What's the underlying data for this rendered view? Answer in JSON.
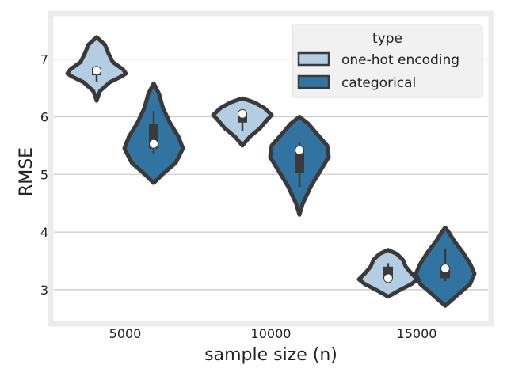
{
  "chart_data": {
    "type": "violin",
    "xlabel": "sample size (n)",
    "ylabel": "RMSE",
    "categories": [
      "5000",
      "10000",
      "15000"
    ],
    "ylim": [
      2.45,
      7.75
    ],
    "yticks": [
      3,
      4,
      5,
      6,
      7
    ],
    "grid": "horizontal",
    "legend": {
      "title": "type",
      "position": "top-right",
      "entries": [
        "one-hot encoding",
        "categorical"
      ]
    },
    "colors": {
      "one-hot encoding": "#b3cde3",
      "categorical": "#3274a1",
      "outline": "#3a3a3a",
      "frame": "#ececec",
      "grid": "#cccccc"
    },
    "series": [
      {
        "name": "one-hot encoding",
        "violins": [
          {
            "category": "5000",
            "median": 6.8,
            "q1": 6.72,
            "q3": 6.85,
            "whisker_low": 6.6,
            "whisker_high": 6.88,
            "min": 6.28,
            "max": 7.38,
            "density": [
              [
                6.28,
                0.0
              ],
              [
                6.45,
                0.12
              ],
              [
                6.6,
                0.45
              ],
              [
                6.7,
                0.85
              ],
              [
                6.75,
                1.0
              ],
              [
                6.82,
                0.9
              ],
              [
                6.95,
                0.55
              ],
              [
                7.1,
                0.4
              ],
              [
                7.25,
                0.28
              ],
              [
                7.38,
                0.0
              ]
            ]
          },
          {
            "category": "10000",
            "median": 6.05,
            "q1": 5.9,
            "q3": 6.05,
            "whisker_low": 5.75,
            "whisker_high": 6.1,
            "min": 5.5,
            "max": 6.32,
            "density": [
              [
                5.5,
                0.0
              ],
              [
                5.65,
                0.25
              ],
              [
                5.8,
                0.6
              ],
              [
                5.95,
                0.85
              ],
              [
                6.03,
                1.0
              ],
              [
                6.15,
                0.75
              ],
              [
                6.25,
                0.4
              ],
              [
                6.32,
                0.0
              ]
            ]
          },
          {
            "category": "15000",
            "median": 3.2,
            "q1": 3.2,
            "q3": 3.4,
            "whisker_low": 3.15,
            "whisker_high": 3.46,
            "min": 2.88,
            "max": 3.69,
            "density": [
              [
                2.88,
                0.0
              ],
              [
                2.98,
                0.35
              ],
              [
                3.1,
                0.8
              ],
              [
                3.18,
                1.0
              ],
              [
                3.28,
                0.8
              ],
              [
                3.4,
                0.6
              ],
              [
                3.52,
                0.5
              ],
              [
                3.62,
                0.3
              ],
              [
                3.69,
                0.0
              ]
            ]
          }
        ]
      },
      {
        "name": "categorical",
        "violins": [
          {
            "category": "5000",
            "median": 5.53,
            "q1": 5.45,
            "q3": 5.88,
            "whisker_low": 5.35,
            "whisker_high": 6.1,
            "min": 4.85,
            "max": 6.58,
            "density": [
              [
                4.85,
                0.0
              ],
              [
                5.0,
                0.3
              ],
              [
                5.2,
                0.75
              ],
              [
                5.45,
                1.0
              ],
              [
                5.65,
                0.85
              ],
              [
                5.9,
                0.55
              ],
              [
                6.15,
                0.32
              ],
              [
                6.4,
                0.18
              ],
              [
                6.58,
                0.0
              ]
            ]
          },
          {
            "category": "10000",
            "median": 5.42,
            "q1": 5.03,
            "q3": 5.47,
            "whisker_low": 4.78,
            "whisker_high": 5.55,
            "min": 4.3,
            "max": 6.0,
            "density": [
              [
                4.3,
                0.0
              ],
              [
                4.5,
                0.12
              ],
              [
                4.8,
                0.4
              ],
              [
                5.05,
                0.7
              ],
              [
                5.3,
                1.0
              ],
              [
                5.5,
                0.95
              ],
              [
                5.7,
                0.6
              ],
              [
                5.88,
                0.3
              ],
              [
                6.0,
                0.0
              ]
            ]
          },
          {
            "category": "15000",
            "median": 3.37,
            "q1": 3.2,
            "q3": 3.4,
            "whisker_low": 3.15,
            "whisker_high": 3.72,
            "min": 2.72,
            "max": 4.08,
            "density": [
              [
                2.72,
                0.0
              ],
              [
                2.9,
                0.4
              ],
              [
                3.1,
                0.85
              ],
              [
                3.28,
                1.0
              ],
              [
                3.45,
                0.85
              ],
              [
                3.65,
                0.6
              ],
              [
                3.85,
                0.3
              ],
              [
                4.0,
                0.12
              ],
              [
                4.08,
                0.0
              ]
            ]
          }
        ]
      }
    ]
  }
}
